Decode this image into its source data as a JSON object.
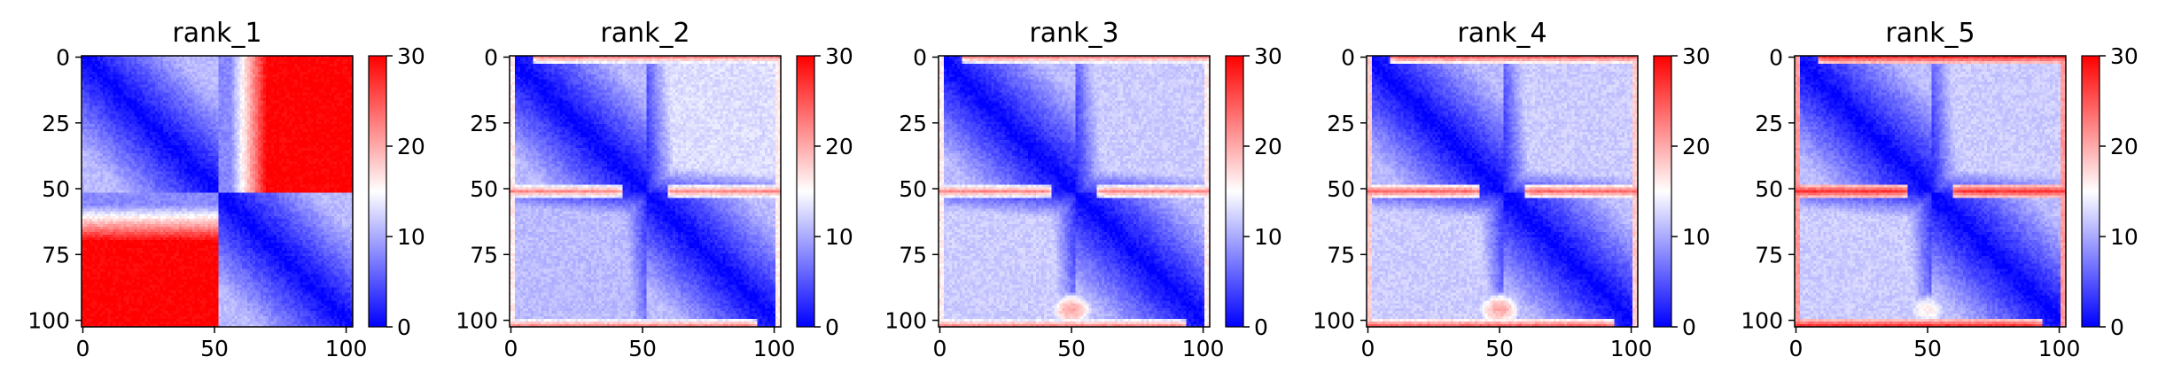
{
  "chart_data": {
    "type": "heatmap",
    "n": 103,
    "colormap": {
      "low": "#0000ff",
      "mid": "#ffffff",
      "high": "#ff0000"
    },
    "vmin": 0,
    "vmax": 30,
    "xticks": [
      0,
      50,
      100
    ],
    "yticks": [
      0,
      25,
      50,
      75,
      100
    ],
    "colorbar_ticks": [
      0,
      10,
      20,
      30
    ],
    "panels": [
      {
        "title": "rank_1",
        "block_split": 52,
        "offblock_upper": 30,
        "offblock_lower": 30,
        "stripe_rows": [],
        "stripe_value": 0,
        "lower_blob_value": 0
      },
      {
        "title": "rank_2",
        "block_split": 52,
        "offblock_upper": 13,
        "offblock_lower": 11,
        "stripe_rows": [
          0,
          51,
          102
        ],
        "stripe_value": 22,
        "lower_blob_value": 0
      },
      {
        "title": "rank_3",
        "block_split": 52,
        "offblock_upper": 12,
        "offblock_lower": 12,
        "stripe_rows": [
          0,
          51,
          102
        ],
        "stripe_value": 22,
        "lower_blob_value": 20
      },
      {
        "title": "rank_4",
        "block_split": 52,
        "offblock_upper": 12,
        "offblock_lower": 12,
        "stripe_rows": [
          0,
          51,
          102
        ],
        "stripe_value": 24,
        "lower_blob_value": 20
      },
      {
        "title": "rank_5",
        "block_split": 52,
        "offblock_upper": 12,
        "offblock_lower": 12,
        "stripe_rows": [
          0,
          51,
          102
        ],
        "stripe_value": 27,
        "lower_blob_value": 16
      }
    ]
  }
}
